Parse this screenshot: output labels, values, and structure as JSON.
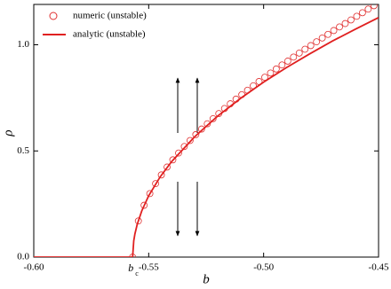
{
  "chart_data": {
    "type": "line",
    "x_label": "b",
    "y_label": "ρ",
    "annotation": {
      "text": "b",
      "subscript": "c"
    },
    "xlim": [
      -0.6,
      -0.45
    ],
    "xticks": [
      {
        "value": -0.6,
        "label": "-0.60"
      },
      {
        "value": -0.55,
        "label": "-0.55"
      },
      {
        "value": -0.5,
        "label": "-0.50"
      },
      {
        "value": -0.45,
        "label": "-0.45"
      }
    ],
    "ylim": [
      0,
      1.19
    ],
    "yticks": [
      {
        "value": 0,
        "label": "0.0"
      },
      0.5,
      {
        "value": 1,
        "label": "1.0"
      }
    ],
    "legend": "upper-left",
    "series": [
      {
        "name": "numeric (unstable)",
        "color": "#e03030",
        "marker": "circle",
        "x": [
          -0.557,
          -0.5545,
          -0.552,
          -0.5495,
          -0.547,
          -0.5445,
          -0.542,
          -0.5395,
          -0.537,
          -0.5345,
          -0.532,
          -0.5295,
          -0.527,
          -0.5245,
          -0.522,
          -0.5195,
          -0.517,
          -0.5145,
          -0.512,
          -0.5095,
          -0.507,
          -0.5045,
          -0.502,
          -0.4995,
          -0.497,
          -0.4945,
          -0.492,
          -0.4895,
          -0.487,
          -0.4845,
          -0.482,
          -0.4795,
          -0.477,
          -0.4745,
          -0.472,
          -0.4695,
          -0.467,
          -0.4645,
          -0.462,
          -0.4595,
          -0.457,
          -0.4545,
          -0.452
        ],
        "values": [
          0,
          0.17,
          0.244,
          0.299,
          0.346,
          0.387,
          0.424,
          0.458,
          0.49,
          0.521,
          0.549,
          0.577,
          0.603,
          0.628,
          0.652,
          0.676,
          0.7,
          0.722,
          0.744,
          0.765,
          0.786,
          0.807,
          0.827,
          0.847,
          0.867,
          0.886,
          0.905,
          0.923,
          0.942,
          0.961,
          0.979,
          0.996,
          1.014,
          1.032,
          1.049,
          1.067,
          1.084,
          1.1,
          1.117,
          1.134,
          1.151,
          1.168,
          1.184
        ]
      },
      {
        "name": "analytic  (unstable)",
        "color": "#e02020",
        "marker": "none",
        "x": [
          -0.6,
          -0.557,
          -0.5565,
          -0.556,
          -0.555,
          -0.553,
          -0.55,
          -0.545,
          -0.54,
          -0.53,
          -0.52,
          -0.51,
          -0.5,
          -0.49,
          -0.48,
          -0.47,
          -0.46,
          -0.45
        ],
        "values": [
          0,
          0,
          0.077,
          0.109,
          0.154,
          0.218,
          0.289,
          0.378,
          0.45,
          0.567,
          0.664,
          0.748,
          0.824,
          0.893,
          0.957,
          1.018,
          1.074,
          1.128
        ]
      }
    ]
  }
}
